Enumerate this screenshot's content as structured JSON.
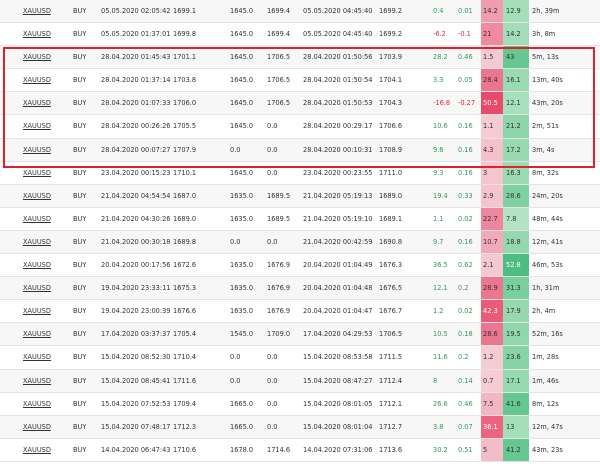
{
  "colors": {
    "positive": "#2e9b55",
    "negative": "#d92b3d"
  },
  "rows": [
    {
      "symbol": "XAUUSD",
      "side": "BUY",
      "open_time": "05.05.2020 02:05:42",
      "open_price": "1699.1",
      "sl": "1645.0",
      "tp": "1699.4",
      "close_time": "05.05.2020 04:45:40",
      "close_price": "1699.2",
      "pips": "0.4",
      "pct": "0.01",
      "mae": "14.2",
      "mfe": "12.9",
      "duration": "2h, 39m",
      "mae_intensity": 0.38,
      "mfe_intensity": 0.32
    },
    {
      "symbol": "XAUUSD",
      "side": "BUY",
      "open_time": "05.05.2020 01:37:01",
      "open_price": "1699.8",
      "sl": "1645.0",
      "tp": "1699.4",
      "close_time": "05.05.2020 04:45:40",
      "close_price": "1699.2",
      "pips": "-6.2",
      "pct": "-0.1",
      "mae": "21",
      "mfe": "14.2",
      "duration": "3h, 8m",
      "mae_intensity": 0.52,
      "mfe_intensity": 0.35
    },
    {
      "symbol": "XAUUSD",
      "side": "BUY",
      "open_time": "28.04.2020 01:45:43",
      "open_price": "1701.1",
      "sl": "1645.0",
      "tp": "1706.5",
      "close_time": "28.04.2020 01:50:56",
      "close_price": "1703.9",
      "pips": "28.2",
      "pct": "0.46",
      "mae": "1.5",
      "mfe": "43",
      "duration": "5m, 13s",
      "mae_intensity": 0.05,
      "mfe_intensity": 0.8
    },
    {
      "symbol": "XAUUSD",
      "side": "BUY",
      "open_time": "28.04.2020 01:37:14",
      "open_price": "1703.8",
      "sl": "1645.0",
      "tp": "1706.5",
      "close_time": "28.04.2020 01:50:54",
      "close_price": "1704.1",
      "pips": "3.3",
      "pct": "0.05",
      "mae": "28.4",
      "mfe": "16.1",
      "duration": "13m, 40s",
      "mae_intensity": 0.68,
      "mfe_intensity": 0.4
    },
    {
      "symbol": "XAUUSD",
      "side": "BUY",
      "open_time": "28.04.2020 01:07:33",
      "open_price": "1706.0",
      "sl": "1645.0",
      "tp": "1706.5",
      "close_time": "28.04.2020 01:50:53",
      "close_price": "1704.3",
      "pips": "-16.8",
      "pct": "-0.27",
      "mae": "50.5",
      "mfe": "12.1",
      "duration": "43m, 20s",
      "mae_intensity": 1.0,
      "mfe_intensity": 0.3
    },
    {
      "symbol": "XAUUSD",
      "side": "BUY",
      "open_time": "28.04.2020 00:26:26",
      "open_price": "1705.5",
      "sl": "1645.0",
      "tp": "0.0",
      "close_time": "28.04.2020 00:29:17",
      "close_price": "1706.6",
      "pips": "10.6",
      "pct": "0.16",
      "mae": "1.1",
      "mfe": "21.2",
      "duration": "2m, 51s",
      "mae_intensity": 0.04,
      "mfe_intensity": 0.5
    },
    {
      "symbol": "XAUUSD",
      "side": "BUY",
      "open_time": "28.04.2020 00:07:27",
      "open_price": "1707.9",
      "sl": "0.0",
      "tp": "0.0",
      "close_time": "28.04.2020 00:10:31",
      "close_price": "1708.9",
      "pips": "9.6",
      "pct": "0.16",
      "mae": "4.3",
      "mfe": "17.2",
      "duration": "3m, 4s",
      "mae_intensity": 0.12,
      "mfe_intensity": 0.42
    },
    {
      "symbol": "XAUUSD",
      "side": "BUY",
      "open_time": "23.04.2020 00:15:23",
      "open_price": "1710.1",
      "sl": "1645.0",
      "tp": "0.0",
      "close_time": "23.04.2020 00:23:55",
      "close_price": "1711.0",
      "pips": "9.3",
      "pct": "0.16",
      "mae": "3",
      "mfe": "16.3",
      "duration": "8m, 32s",
      "mae_intensity": 0.08,
      "mfe_intensity": 0.4
    },
    {
      "symbol": "XAUUSD",
      "side": "BUY",
      "open_time": "21.04.2020 04:54:54",
      "open_price": "1687.0",
      "sl": "1635.0",
      "tp": "1689.5",
      "close_time": "21.04.2020 05:19:13",
      "close_price": "1689.0",
      "pips": "19.4",
      "pct": "0.33",
      "mae": "2.9",
      "mfe": "28.6",
      "duration": "24m, 20s",
      "mae_intensity": 0.08,
      "mfe_intensity": 0.6
    },
    {
      "symbol": "XAUUSD",
      "side": "BUY",
      "open_time": "21.04.2020 04:30:26",
      "open_price": "1689.0",
      "sl": "1635.0",
      "tp": "1689.5",
      "close_time": "21.04.2020 05:19:10",
      "close_price": "1689.1",
      "pips": "1.1",
      "pct": "0.02",
      "mae": "22.7",
      "mfe": "7.8",
      "duration": "48m, 44s",
      "mae_intensity": 0.55,
      "mfe_intensity": 0.2
    },
    {
      "symbol": "XAUUSD",
      "side": "BUY",
      "open_time": "21.04.2020 00:30:18",
      "open_price": "1689.8",
      "sl": "0.0",
      "tp": "0.0",
      "close_time": "21.04.2020 00:42:59",
      "close_price": "1690.8",
      "pips": "9.7",
      "pct": "0.16",
      "mae": "10.7",
      "mfe": "18.8",
      "duration": "12m, 41s",
      "mae_intensity": 0.28,
      "mfe_intensity": 0.45
    },
    {
      "symbol": "XAUUSD",
      "side": "BUY",
      "open_time": "20.04.2020 00:17:56",
      "open_price": "1672.6",
      "sl": "1635.0",
      "tp": "1676.9",
      "close_time": "20.04.2020 01:04:49",
      "close_price": "1676.3",
      "pips": "36.5",
      "pct": "0.62",
      "mae": "2.1",
      "mfe": "52.8",
      "duration": "46m, 53s",
      "mae_intensity": 0.06,
      "mfe_intensity": 1.0
    },
    {
      "symbol": "XAUUSD",
      "side": "BUY",
      "open_time": "19.04.2020 23:33:11",
      "open_price": "1675.3",
      "sl": "1635.0",
      "tp": "1676.9",
      "close_time": "20.04.2020 01:04:48",
      "close_price": "1676.5",
      "pips": "12.1",
      "pct": "0.2",
      "mae": "28.9",
      "mfe": "31.3",
      "duration": "1h, 31m",
      "mae_intensity": 0.68,
      "mfe_intensity": 0.65
    },
    {
      "symbol": "XAUUSD",
      "side": "BUY",
      "open_time": "19.04.2020 23:00:39",
      "open_price": "1676.6",
      "sl": "1635.0",
      "tp": "1676.9",
      "close_time": "20.04.2020 01:04:47",
      "close_price": "1676.7",
      "pips": "1.2",
      "pct": "0.02",
      "mae": "42.3",
      "mfe": "17.9",
      "duration": "2h, 4m",
      "mae_intensity": 0.88,
      "mfe_intensity": 0.43
    },
    {
      "symbol": "XAUUSD",
      "side": "BUY",
      "open_time": "17.04.2020 03:37:37",
      "open_price": "1705.4",
      "sl": "1545.0",
      "tp": "1709.0",
      "close_time": "17.04.2020 04:29:53",
      "close_price": "1706.5",
      "pips": "10.5",
      "pct": "0.18",
      "mae": "28.6",
      "mfe": "19.5",
      "duration": "52m, 16s",
      "mae_intensity": 0.68,
      "mfe_intensity": 0.47
    },
    {
      "symbol": "XAUUSD",
      "side": "BUY",
      "open_time": "15.04.2020 08:52:30",
      "open_price": "1710.4",
      "sl": "0.0",
      "tp": "0.0",
      "close_time": "15.04.2020 08:53:58",
      "close_price": "1711.5",
      "pips": "11.6",
      "pct": "0.2",
      "mae": "1.2",
      "mfe": "23.6",
      "duration": "1m, 28s",
      "mae_intensity": 0.04,
      "mfe_intensity": 0.55
    },
    {
      "symbol": "XAUUSD",
      "side": "BUY",
      "open_time": "15.04.2020 08:45:41",
      "open_price": "1711.6",
      "sl": "0.0",
      "tp": "0.0",
      "close_time": "15.04.2020 08:47:27",
      "close_price": "1712.4",
      "pips": "8",
      "pct": "0.14",
      "mae": "0.7",
      "mfe": "17.1",
      "duration": "1m, 46s",
      "mae_intensity": 0.03,
      "mfe_intensity": 0.42
    },
    {
      "symbol": "XAUUSD",
      "side": "BUY",
      "open_time": "15.04.2020 07:52:53",
      "open_price": "1709.4",
      "sl": "1665.0",
      "tp": "0.0",
      "close_time": "15.04.2020 08:01:05",
      "close_price": "1712.1",
      "pips": "26.6",
      "pct": "0.46",
      "mae": "7.5",
      "mfe": "41.6",
      "duration": "8m, 12s",
      "mae_intensity": 0.2,
      "mfe_intensity": 0.8
    },
    {
      "symbol": "XAUUSD",
      "side": "BUY",
      "open_time": "15.04.2020 07:48:17",
      "open_price": "1712.3",
      "sl": "1665.0",
      "tp": "0.0",
      "close_time": "15.04.2020 08:01:04",
      "close_price": "1712.7",
      "pips": "3.8",
      "pct": "0.07",
      "mae": "36.1",
      "mfe": "13",
      "duration": "12m, 47s",
      "mae_intensity": 0.8,
      "mfe_intensity": 0.32
    },
    {
      "symbol": "XAUUSD",
      "side": "BUY",
      "open_time": "14.04.2020 06:47:43",
      "open_price": "1710.6",
      "sl": "1678.0",
      "tp": "1714.6",
      "close_time": "14.04.2020 07:31:06",
      "close_price": "1713.6",
      "pips": "30.2",
      "pct": "0.51",
      "mae": "5",
      "mfe": "41.2",
      "duration": "43m, 23s",
      "mae_intensity": 0.15,
      "mfe_intensity": 0.8
    }
  ]
}
